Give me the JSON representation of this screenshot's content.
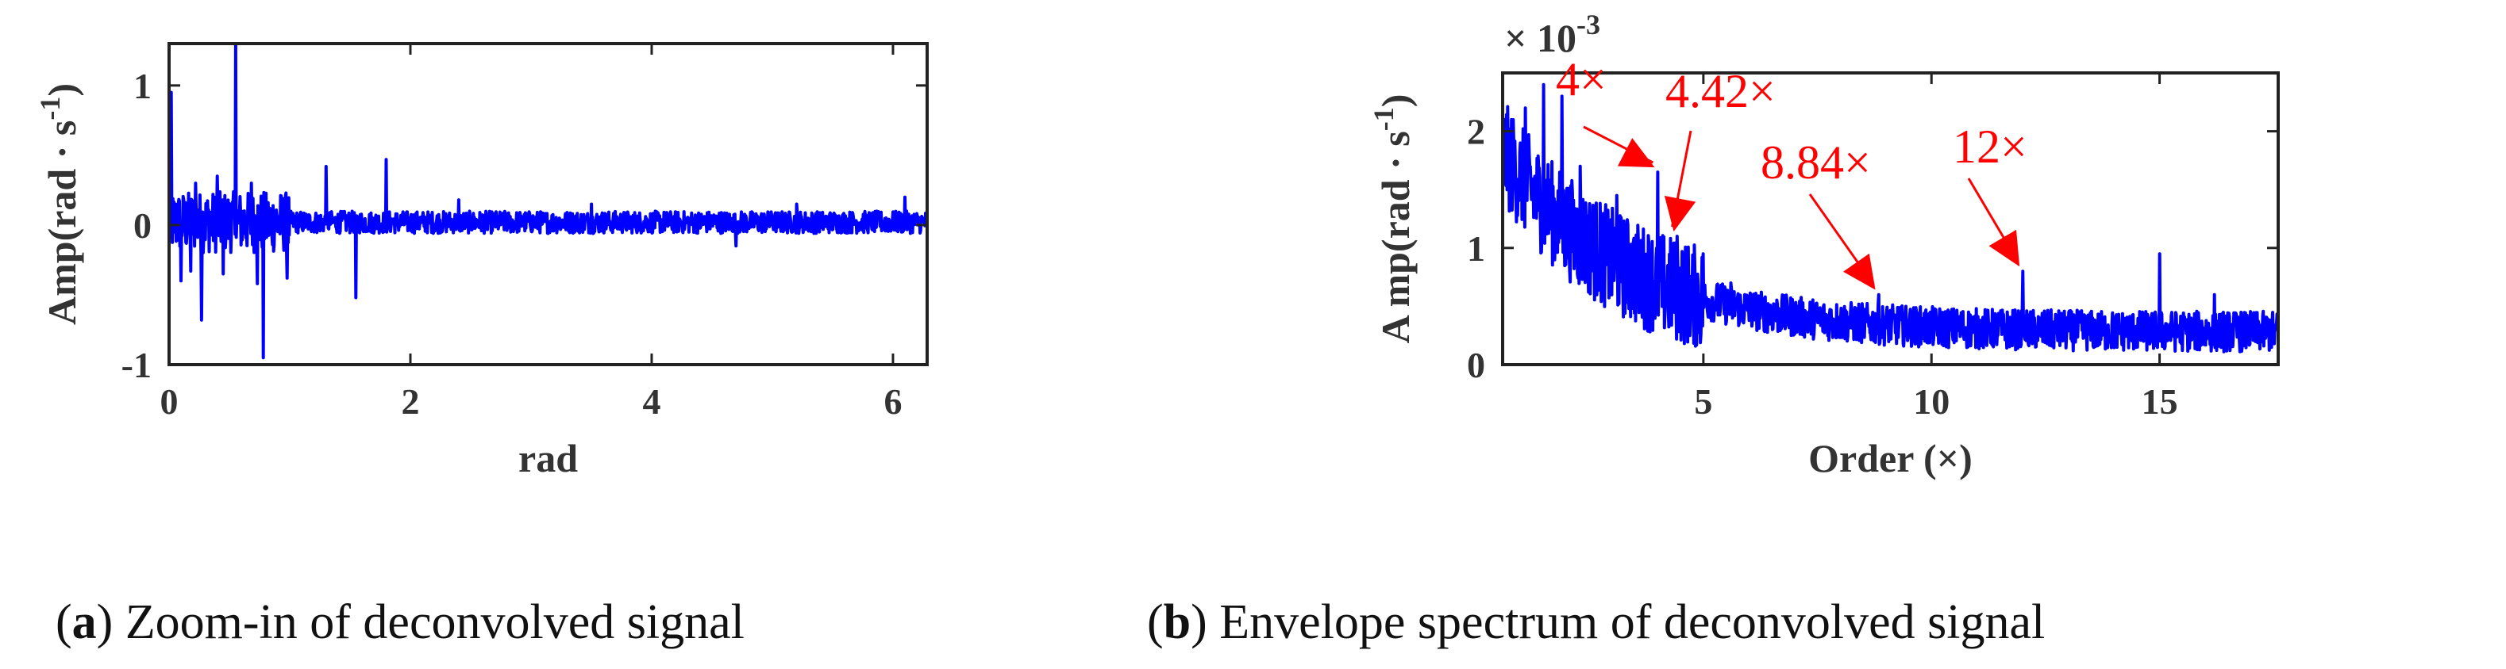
{
  "chart_data": [
    {
      "type": "line",
      "xlabel": "rad",
      "ylabel": "Amp(rad · s",
      "ylabel_sup": "-1",
      "ylabel_close": ")",
      "xlim": [
        0,
        6.2832
      ],
      "ylim": [
        -1,
        1.3
      ],
      "xticks": [
        0,
        2,
        4,
        6
      ],
      "yticks": [
        -1,
        0,
        1
      ],
      "color": "#0000ff",
      "spikes": [
        {
          "x": 0.02,
          "y": 0.95
        },
        {
          "x": 0.1,
          "y": -0.4
        },
        {
          "x": 0.18,
          "y": -0.33
        },
        {
          "x": 0.22,
          "y": 0.3
        },
        {
          "x": 0.27,
          "y": -0.68
        },
        {
          "x": 0.4,
          "y": 0.35
        },
        {
          "x": 0.45,
          "y": -0.35
        },
        {
          "x": 0.55,
          "y": 1.3
        },
        {
          "x": 0.68,
          "y": 0.3
        },
        {
          "x": 0.73,
          "y": -0.42
        },
        {
          "x": 0.78,
          "y": -0.95
        },
        {
          "x": 0.98,
          "y": -0.38
        },
        {
          "x": 1.3,
          "y": 0.42
        },
        {
          "x": 1.55,
          "y": -0.52
        },
        {
          "x": 1.8,
          "y": 0.47
        },
        {
          "x": 2.4,
          "y": 0.18
        },
        {
          "x": 3.5,
          "y": 0.15
        },
        {
          "x": 4.7,
          "y": -0.15
        },
        {
          "x": 5.2,
          "y": 0.15
        },
        {
          "x": 6.1,
          "y": 0.2
        }
      ],
      "caption_letter": "a",
      "caption_text": "Zoom-in of deconvolved signal"
    },
    {
      "type": "line",
      "xlabel": "Order (×)",
      "ylabel": "A mp(rad · s",
      "ylabel_sup": "-1",
      "ylabel_close": ")",
      "yscale_label": "× 10",
      "yscale_exp": "-3",
      "xlim": [
        0.6,
        17.6
      ],
      "ylim": [
        0,
        2.5
      ],
      "xticks": [
        5,
        10,
        15
      ],
      "yticks": [
        0,
        1,
        2
      ],
      "color": "#0000ff",
      "peaks": [
        {
          "x": 0.8,
          "y": 2.1
        },
        {
          "x": 1.1,
          "y": 2.2
        },
        {
          "x": 1.5,
          "y": 2.4
        },
        {
          "x": 1.9,
          "y": 2.3
        },
        {
          "x": 2.3,
          "y": 1.7
        },
        {
          "x": 3.1,
          "y": 1.45
        },
        {
          "x": 4.0,
          "y": 1.65
        },
        {
          "x": 4.42,
          "y": 1.1
        },
        {
          "x": 5.0,
          "y": 0.95
        },
        {
          "x": 5.6,
          "y": 0.7
        },
        {
          "x": 8.84,
          "y": 0.6
        },
        {
          "x": 12.0,
          "y": 0.8
        },
        {
          "x": 15.0,
          "y": 0.95
        },
        {
          "x": 16.2,
          "y": 0.6
        }
      ],
      "annotations": [
        {
          "label": "4×",
          "x": 4.0,
          "y": 1.65
        },
        {
          "label": "4.42×",
          "x": 4.42,
          "y": 1.1
        },
        {
          "label": "8.84×",
          "x": 8.84,
          "y": 0.6
        },
        {
          "label": "12×",
          "x": 12.0,
          "y": 0.8
        }
      ],
      "annotation_color": "#ff0000",
      "caption_letter": "b",
      "caption_text": "Envelope spectrum of deconvolved signal"
    }
  ]
}
